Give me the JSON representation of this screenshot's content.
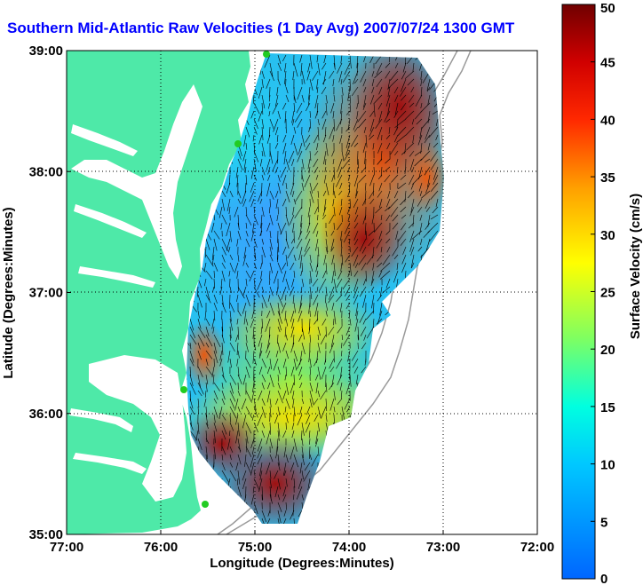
{
  "title": "Southern Mid-Atlantic Raw Velocities (1 Day Avg) 2007/07/24 1300 GMT",
  "map": {
    "xlabel": "Longitude (Degrees:Minutes)",
    "ylabel": "Latitude (Degrees:Minutes)",
    "x_ticks": [
      "77:00",
      "76:00",
      "75:00",
      "74:00",
      "73:00",
      "72:00"
    ],
    "y_ticks": [
      "39:00",
      "38:00",
      "37:00",
      "36:00",
      "35:00"
    ],
    "lon_range": [
      -77,
      -72
    ],
    "lat_range": [
      35,
      39
    ],
    "grid": "dotted",
    "land_color": "#4ee9a8",
    "bathymetry_color": "#9a9a9a",
    "site_marker_color": "#22cc22"
  },
  "colorbar": {
    "label": "Surface Velocity (cm/s)",
    "ticks": [
      "50",
      "45",
      "40",
      "35",
      "30",
      "25",
      "20",
      "15",
      "10",
      "5",
      "0"
    ],
    "range": [
      0,
      50
    ],
    "units": "cm/s"
  },
  "chart_data": {
    "type": "heatmap",
    "title": "Southern Mid-Atlantic Raw Velocities (1 Day Avg) 2007/07/24 1300 GMT",
    "xlabel": "Longitude (Degrees:Minutes)",
    "ylabel": "Latitude (Degrees:Minutes)",
    "xlim": [
      -77,
      -72
    ],
    "ylim": [
      35,
      39
    ],
    "value_range": [
      0,
      50
    ],
    "value_label": "Surface Velocity (cm/s)",
    "radar_sites": [
      {
        "lon": -75.1,
        "lat": 38.95
      },
      {
        "lon": -75.15,
        "lat": 38.22
      },
      {
        "lon": -75.75,
        "lat": 36.2
      },
      {
        "lon": -75.5,
        "lat": 35.25
      }
    ]
  }
}
